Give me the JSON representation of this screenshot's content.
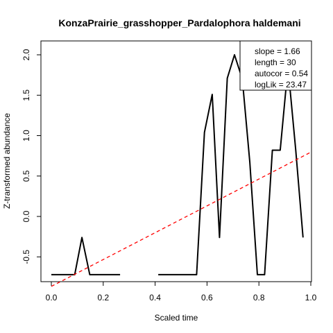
{
  "chart_data": {
    "type": "line",
    "title": "KonzaPrairie_grasshopper_Pardalophora haldemani",
    "xlabel": "Scaled time",
    "ylabel": "Z-transformed abundance",
    "xlim": [
      0.0,
      1.0
    ],
    "ylim": [
      -0.8,
      2.2
    ],
    "x_ticks": [
      "0.0",
      "0.2",
      "0.4",
      "0.6",
      "0.8",
      "1.0"
    ],
    "y_ticks": [
      "-0.5",
      "0.0",
      "0.5",
      "1.0",
      "1.5",
      "2.0"
    ],
    "grid": false,
    "series": [
      {
        "color": "#000000",
        "style": "solid",
        "segments": [
          [
            {
              "x": 0.0,
              "y": -0.72
            },
            {
              "x": 0.09,
              "y": -0.72
            },
            {
              "x": 0.118,
              "y": -0.26
            },
            {
              "x": 0.148,
              "y": -0.72
            },
            {
              "x": 0.265,
              "y": -0.72
            }
          ],
          [
            {
              "x": 0.412,
              "y": -0.72
            },
            {
              "x": 0.56,
              "y": -0.72
            },
            {
              "x": 0.59,
              "y": 1.04
            },
            {
              "x": 0.62,
              "y": 1.51
            },
            {
              "x": 0.648,
              "y": -0.26
            },
            {
              "x": 0.678,
              "y": 1.71
            },
            {
              "x": 0.706,
              "y": 2.0
            },
            {
              "x": 0.736,
              "y": 1.7
            },
            {
              "x": 0.765,
              "y": 0.67
            },
            {
              "x": 0.794,
              "y": -0.72
            },
            {
              "x": 0.822,
              "y": -0.72
            },
            {
              "x": 0.852,
              "y": 0.82
            },
            {
              "x": 0.882,
              "y": 0.82
            },
            {
              "x": 0.912,
              "y": 1.85
            },
            {
              "x": 0.942,
              "y": 0.82
            },
            {
              "x": 0.97,
              "y": -0.26
            }
          ]
        ]
      },
      {
        "color": "#ff0000",
        "style": "dashed",
        "segments": [
          [
            {
              "x": 0.0,
              "y": -0.865
            },
            {
              "x": 1.0,
              "y": 0.795
            }
          ]
        ]
      }
    ],
    "legend": {
      "position": "top-right",
      "entries": [
        "slope = 1.66",
        "length = 30",
        "autocor = 0.54",
        "logLik = 23.47"
      ]
    }
  }
}
